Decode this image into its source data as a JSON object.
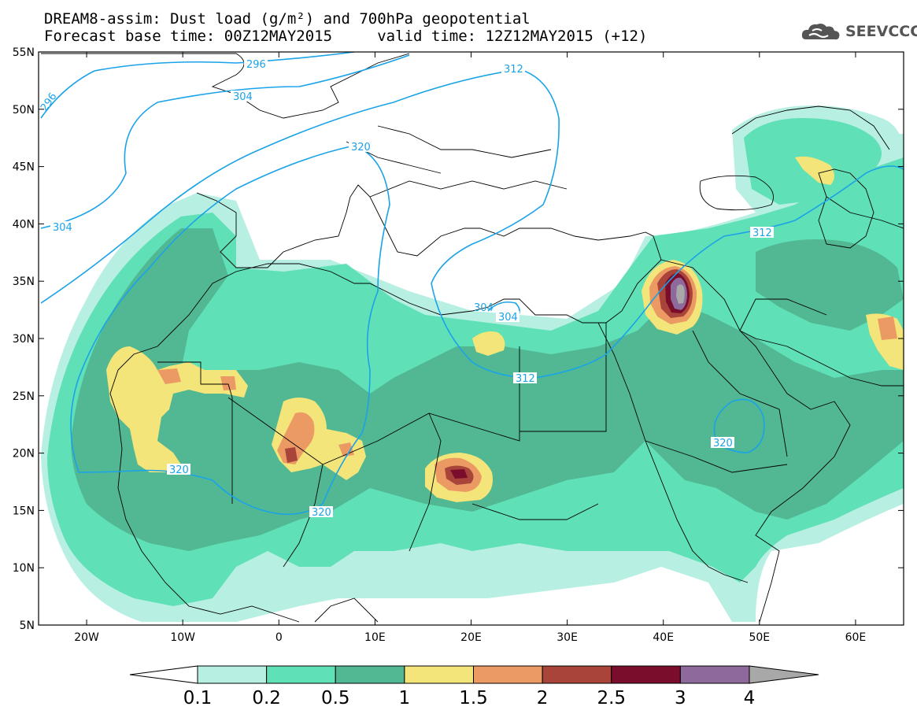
{
  "title": {
    "line1": "DREAM8-assim: Dust load (g/m²) and 700hPa geopotential",
    "line2": "Forecast base time: 00Z12MAY2015     valid time: 12Z12MAY2015 (+12)"
  },
  "logo": {
    "text": "SEEVCCC",
    "icon": "cloud-icon"
  },
  "map": {
    "lon_range": [
      -25,
      65
    ],
    "lat_range": [
      5,
      55
    ],
    "lat_ticks": [
      "55N",
      "50N",
      "45N",
      "40N",
      "35N",
      "30N",
      "25N",
      "20N",
      "15N",
      "10N",
      "5N"
    ],
    "lon_ticks": [
      "20W",
      "10W",
      "0",
      "10E",
      "20E",
      "30E",
      "40E",
      "50E",
      "60E"
    ]
  },
  "colorbar": {
    "levels": [
      "0.1",
      "0.2",
      "0.5",
      "1",
      "1.5",
      "2",
      "2.5",
      "3",
      "4"
    ],
    "colors": [
      "#b8efe3",
      "#5fe0b6",
      "#52b893",
      "#f3e57a",
      "#ec9a64",
      "#a8443a",
      "#7a0d2b",
      "#8e6a9c",
      "#a8a8a8"
    ],
    "low_end_color": "#ffffff"
  },
  "contours": {
    "color": "#1aa3e8",
    "labels": [
      "296",
      "296",
      "304",
      "304",
      "312",
      "320",
      "304",
      "304",
      "312",
      "312",
      "320",
      "320",
      "320"
    ]
  },
  "dust_colors": {
    "level1": "#b8efe3",
    "level2": "#5fe0b6",
    "level3": "#52b893",
    "level4": "#f3e57a",
    "level5": "#ec9a64",
    "level6": "#a8443a",
    "level7": "#7a0d2b",
    "level8": "#8e6a9c",
    "level9": "#a8a8a8"
  }
}
